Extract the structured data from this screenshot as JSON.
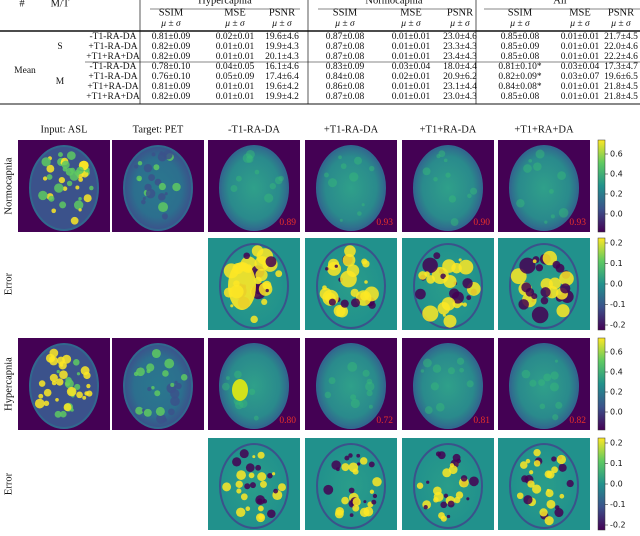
{
  "table": {
    "corner": [
      "#",
      "M/T"
    ],
    "groups": [
      "Hypercapnia",
      "Normocapnia",
      "All"
    ],
    "metrics": [
      "SSIM",
      "MSE",
      "PSNR"
    ],
    "stat": "μ ± σ",
    "row_group": "Mean",
    "highlight_color": "#33dd33",
    "sections": [
      {
        "label": "S",
        "rows": [
          {
            "name": "-T1-RA-DA",
            "cells": [
              "0.81±0.09",
              "0.02±0.01",
              "19.6±4.6",
              "0.87±0.08",
              "0.01±0.01",
              "23.0±4.6",
              "0.85±0.08",
              "0.01±0.01",
              "21.7±4.5"
            ],
            "highlight": [
              3
            ]
          },
          {
            "name": "+T1-RA-DA",
            "cells": [
              "0.82±0.09",
              "0.01±0.01",
              "19.9±4.3",
              "0.87±0.08",
              "0.01±0.01",
              "23.3±4.3",
              "0.85±0.09",
              "0.01±0.01",
              "22.0±4.6"
            ],
            "highlight": [
              0,
              3
            ]
          },
          {
            "name": "+T1+RA+DA",
            "cells": [
              "0.82±0.09",
              "0.01±0.01",
              "20.1±4.3",
              "0.87±0.08",
              "0.01±0.01",
              "23.4±4.3",
              "0.85±0.08",
              "0.01±0.01",
              "22.2±4.6"
            ],
            "highlight": [
              0,
              3,
              6
            ]
          }
        ]
      },
      {
        "label": "M",
        "rows": [
          {
            "name": "-T1-RA-DA",
            "cells": [
              "0.78±0.10",
              "0.04±0.05",
              "16.1±4.6",
              "0.83±0.09",
              "0.03±0.04",
              "18.0±4.4",
              "0.81±0.10*",
              "0.03±0.04",
              "17.3±4.7"
            ],
            "highlight": []
          },
          {
            "name": "+T1-RA-DA",
            "cells": [
              "0.76±0.10",
              "0.05±0.09",
              "17.4±6.4",
              "0.84±0.08",
              "0.02±0.01",
              "20.9±6.2",
              "0.82±0.09*",
              "0.03±0.07",
              "19.6±6.5"
            ],
            "highlight": []
          },
          {
            "name": "+T1+RA-DA",
            "cells": [
              "0.81±0.09",
              "0.01±0.01",
              "19.6±4.2",
              "0.86±0.08",
              "0.01±0.01",
              "23.1±4.4",
              "0.84±0.08*",
              "0.01±0.01",
              "21.8±4.5"
            ],
            "highlight": []
          },
          {
            "name": "+T1+RA+DA",
            "cells": [
              "0.82±0.09",
              "0.01±0.01",
              "19.9±4.2",
              "0.87±0.08",
              "0.01±0.01",
              "23.0±4.3",
              "0.85±0.08",
              "0.01±0.01",
              "21.8±4.5"
            ],
            "highlight": [
              0,
              3,
              6
            ]
          }
        ]
      }
    ]
  },
  "figure": {
    "columns": [
      "Input: ASL",
      "Target: PET",
      "-T1-RA-DA",
      "+T1-RA-DA",
      "+T1+RA-DA",
      "+T1+RA+DA"
    ],
    "score_color": "#e8302a",
    "rows": [
      {
        "label": "Normocapnia",
        "scores": [
          "0.89",
          "0.93",
          "0.90",
          "0.93"
        ],
        "colorbar_ticks": [
          "0.6",
          "0.4",
          "0.2",
          "0.0"
        ]
      },
      {
        "label": "Error",
        "colorbar_ticks": [
          "0.2",
          "0.1",
          "0.0",
          "-0.1",
          "-0.2"
        ]
      },
      {
        "label": "Hypercapnia",
        "scores": [
          "0.80",
          "0.72",
          "0.81",
          "0.82"
        ],
        "colorbar_ticks": [
          "0.6",
          "0.4",
          "0.2",
          "0.0"
        ]
      },
      {
        "label": "Error",
        "colorbar_ticks": [
          "0.2",
          "0.1",
          "0.0",
          "-0.1",
          "-0.2"
        ]
      }
    ]
  }
}
